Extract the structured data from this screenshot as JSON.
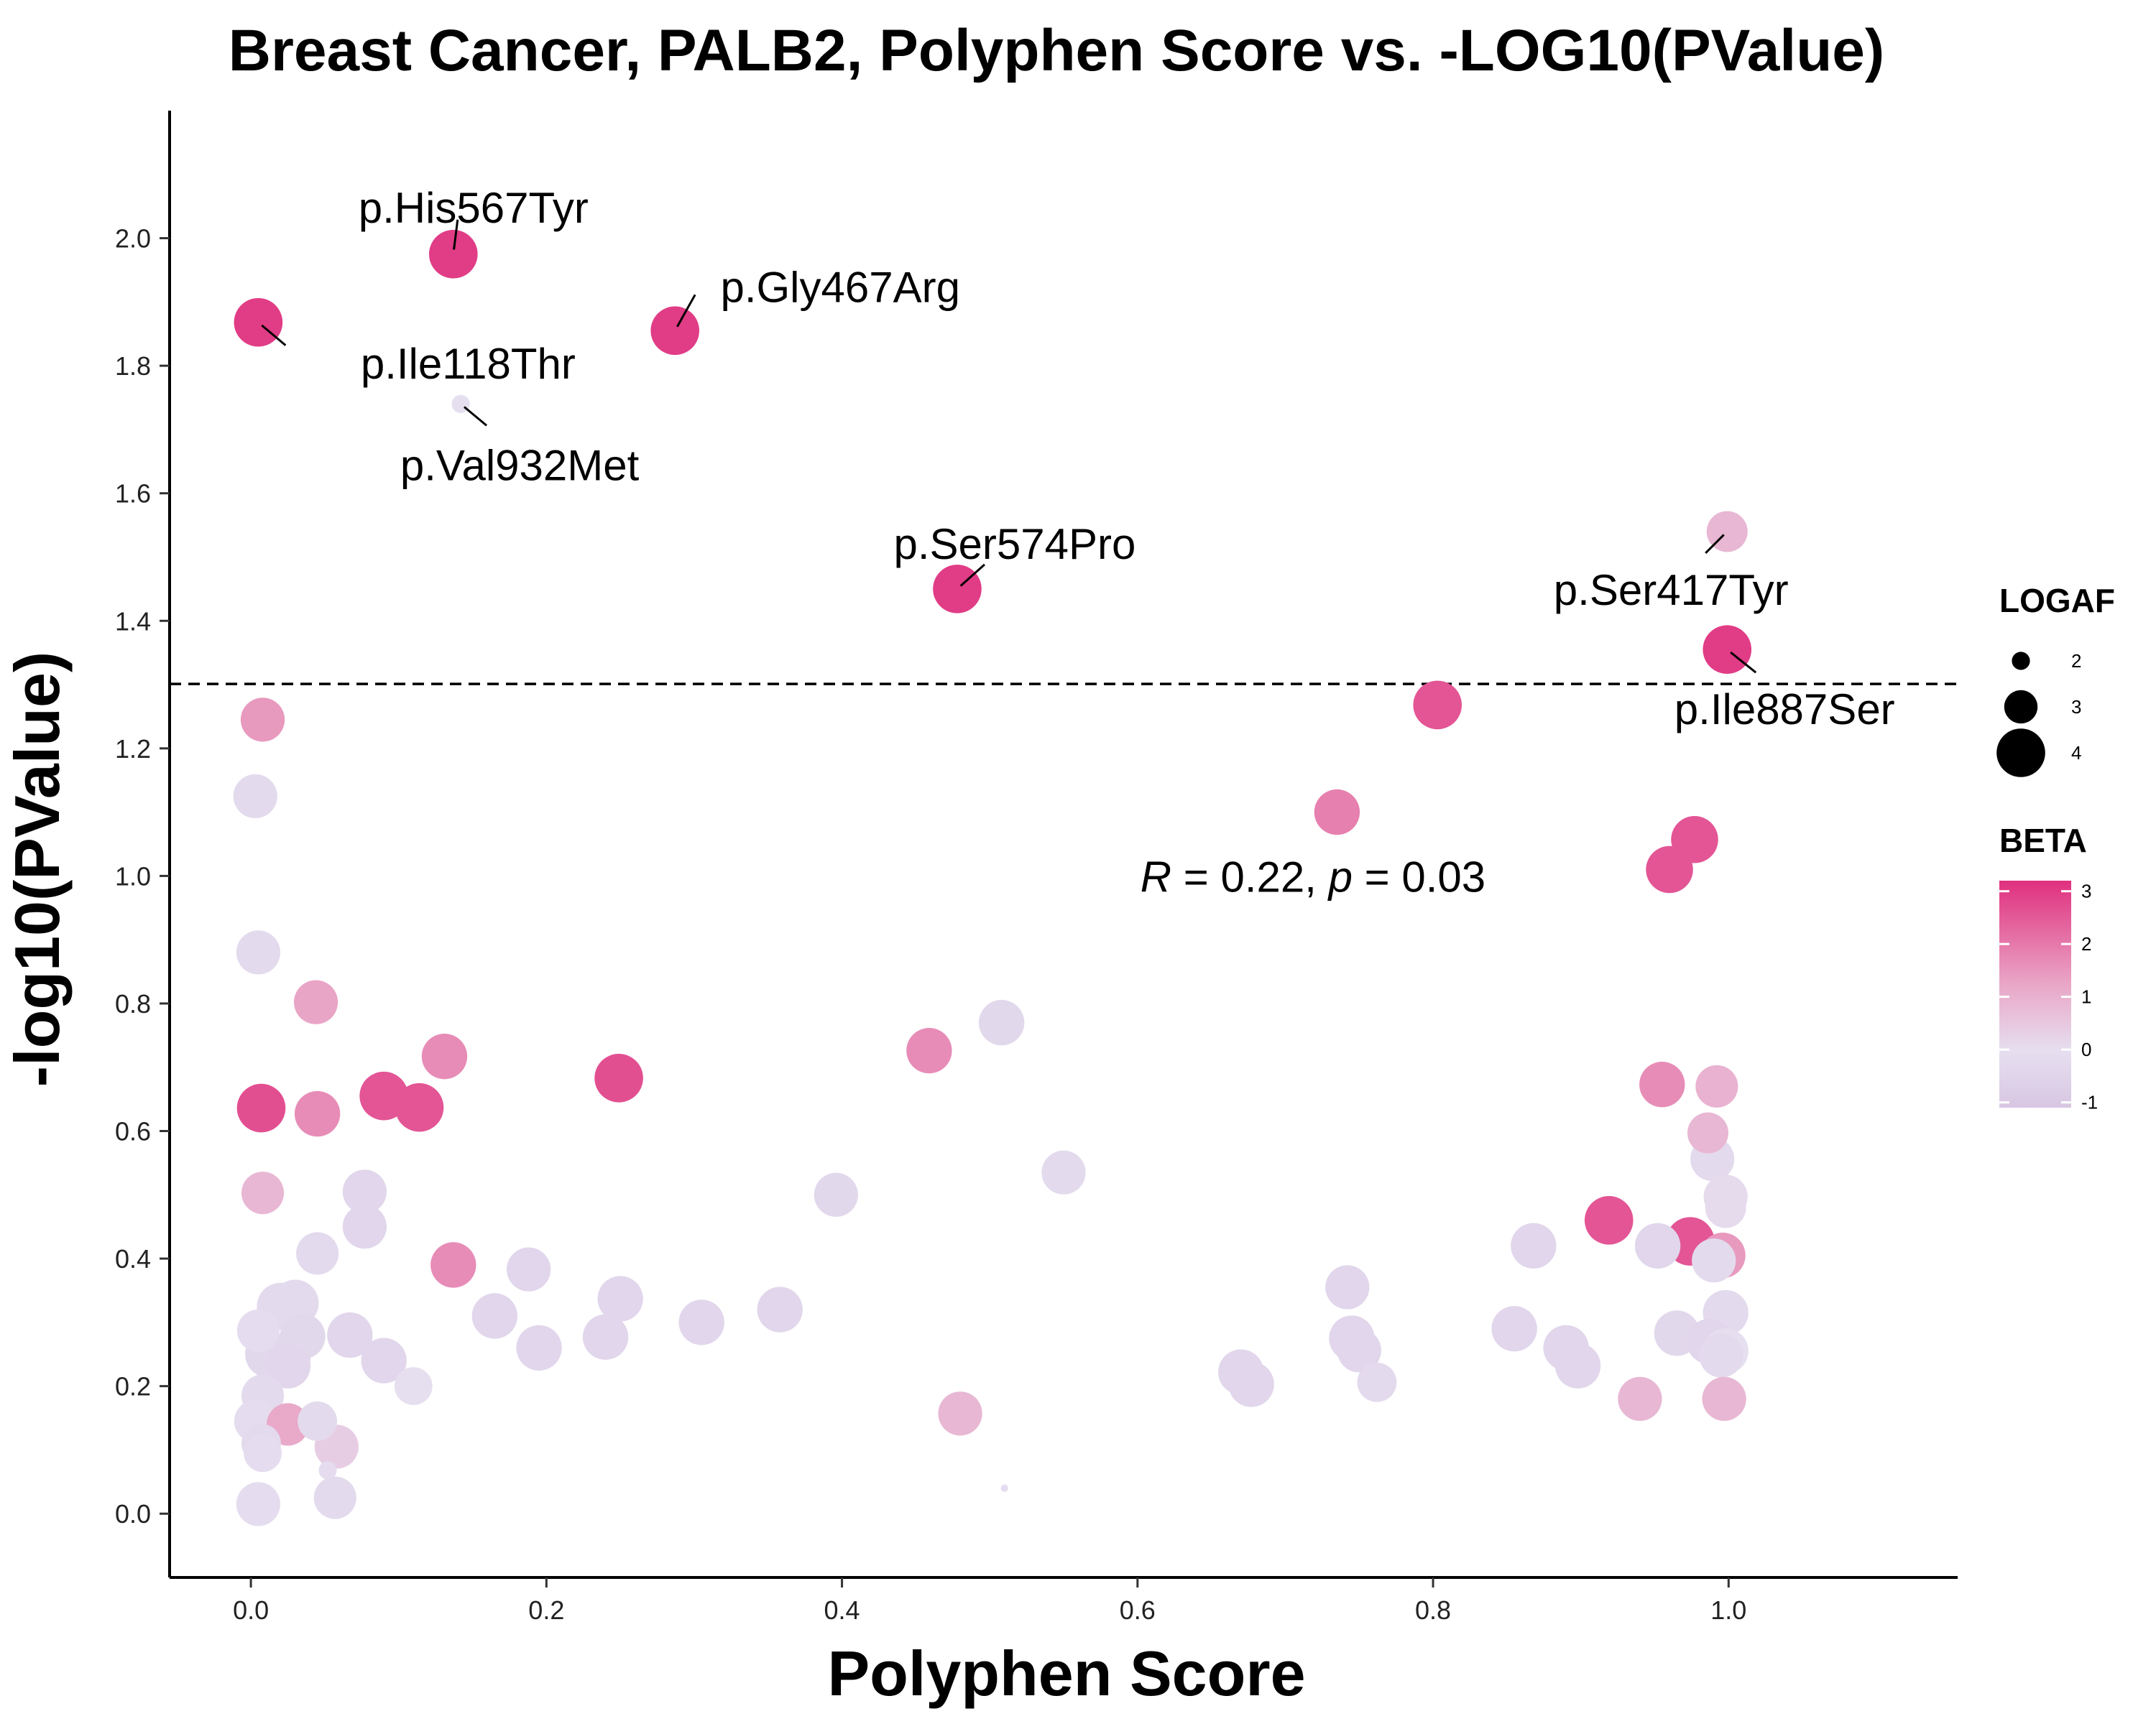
{
  "chart_data": {
    "type": "scatter",
    "title": "Breast Cancer, PALB2, Polyphen Score vs. -LOG10(PValue)",
    "xlabel": "Polyphen Score",
    "ylabel": "-log10(PValue)",
    "xlim": [
      -0.055,
      1.155
    ],
    "ylim": [
      -0.1,
      2.2
    ],
    "xticks": [
      0.0,
      0.2,
      0.4,
      0.6,
      0.8,
      1.0
    ],
    "xtick_labels": [
      "0.0",
      "0.2",
      "0.4",
      "0.6",
      "0.8",
      "1.0"
    ],
    "yticks": [
      0.0,
      0.2,
      0.4,
      0.6,
      0.8,
      1.0,
      1.2,
      1.4,
      1.6,
      1.8,
      2.0
    ],
    "ytick_labels": [
      "0.0",
      "0.2",
      "0.4",
      "0.6",
      "0.8",
      "1.0",
      "1.2",
      "1.4",
      "1.6",
      "1.8",
      "2.0"
    ],
    "significance_line_y": 1.301,
    "correlation_label": {
      "R": "R",
      "eq1": " = 0.22, ",
      "p": "p",
      "eq2": " = 0.03",
      "x": 0.6,
      "y": 1.0
    },
    "legend": {
      "size_title": "LOGAF",
      "size_levels": [
        2,
        3,
        4
      ],
      "size_labels": [
        "2",
        "3",
        "4"
      ],
      "color_title": "BETA",
      "color_ticks": [
        3,
        2,
        1,
        0,
        -1
      ],
      "color_tick_labels": [
        "3",
        "2",
        "1",
        "0",
        "-1"
      ],
      "color_range": [
        -1.1,
        3.2
      ],
      "color_low": "#d8c6e2",
      "color_mid": "#e6dff0",
      "color_high": "#e0307e"
    },
    "labels": [
      {
        "text": "p.His567Tyr",
        "x": 0.137,
        "y": 1.975
      },
      {
        "text": "p.Gly467Arg",
        "x": 0.287,
        "y": 1.855
      },
      {
        "text": "p.Ile118Thr",
        "x": 0.005,
        "y": 1.868
      },
      {
        "text": "p.Val932Met",
        "x": 0.142,
        "y": 1.74
      },
      {
        "text": "p.Ser574Pro",
        "x": 0.478,
        "y": 1.45
      },
      {
        "text": "p.Ser417Tyr",
        "x": 0.999,
        "y": 1.54
      },
      {
        "text": "p.Ile887Ser",
        "x": 0.999,
        "y": 1.355
      }
    ],
    "points": [
      {
        "x": 0.137,
        "y": 1.975,
        "logaf": 4.0,
        "beta": 3.0
      },
      {
        "x": 0.287,
        "y": 1.855,
        "logaf": 4.0,
        "beta": 3.0
      },
      {
        "x": 0.005,
        "y": 1.868,
        "logaf": 4.0,
        "beta": 3.0
      },
      {
        "x": 0.142,
        "y": 1.74,
        "logaf": 2.0,
        "beta": 0.0
      },
      {
        "x": 0.478,
        "y": 1.45,
        "logaf": 4.0,
        "beta": 3.0
      },
      {
        "x": 0.999,
        "y": 1.54,
        "logaf": 3.5,
        "beta": 0.9
      },
      {
        "x": 0.999,
        "y": 1.355,
        "logaf": 4.0,
        "beta": 3.0
      },
      {
        "x": 0.803,
        "y": 1.268,
        "logaf": 4.0,
        "beta": 2.6
      },
      {
        "x": 0.008,
        "y": 1.245,
        "logaf": 3.7,
        "beta": 1.5
      },
      {
        "x": 0.003,
        "y": 1.125,
        "logaf": 3.7,
        "beta": -0.2
      },
      {
        "x": 0.735,
        "y": 1.1,
        "logaf": 3.8,
        "beta": 1.9
      },
      {
        "x": 0.977,
        "y": 1.057,
        "logaf": 3.9,
        "beta": 2.6
      },
      {
        "x": 0.96,
        "y": 1.01,
        "logaf": 3.9,
        "beta": 2.6
      },
      {
        "x": 0.005,
        "y": 0.88,
        "logaf": 3.7,
        "beta": -0.2
      },
      {
        "x": 0.044,
        "y": 0.802,
        "logaf": 3.7,
        "beta": 1.3
      },
      {
        "x": 0.508,
        "y": 0.77,
        "logaf": 3.8,
        "beta": -0.3
      },
      {
        "x": 0.131,
        "y": 0.717,
        "logaf": 3.8,
        "beta": 1.7
      },
      {
        "x": 0.459,
        "y": 0.726,
        "logaf": 3.8,
        "beta": 1.7
      },
      {
        "x": 0.249,
        "y": 0.683,
        "logaf": 4.0,
        "beta": 2.7
      },
      {
        "x": 0.955,
        "y": 0.673,
        "logaf": 3.8,
        "beta": 1.7
      },
      {
        "x": 0.992,
        "y": 0.67,
        "logaf": 3.6,
        "beta": 1.0
      },
      {
        "x": 0.007,
        "y": 0.636,
        "logaf": 4.0,
        "beta": 2.7
      },
      {
        "x": 0.09,
        "y": 0.655,
        "logaf": 4.0,
        "beta": 2.6
      },
      {
        "x": 0.114,
        "y": 0.637,
        "logaf": 4.0,
        "beta": 2.6
      },
      {
        "x": 0.045,
        "y": 0.627,
        "logaf": 3.8,
        "beta": 1.7
      },
      {
        "x": 0.986,
        "y": 0.597,
        "logaf": 3.5,
        "beta": 0.9
      },
      {
        "x": 0.989,
        "y": 0.556,
        "logaf": 3.7,
        "beta": -0.2
      },
      {
        "x": 0.55,
        "y": 0.535,
        "logaf": 3.7,
        "beta": -0.2
      },
      {
        "x": 0.077,
        "y": 0.505,
        "logaf": 3.7,
        "beta": -0.4
      },
      {
        "x": 0.008,
        "y": 0.503,
        "logaf": 3.6,
        "beta": 0.9
      },
      {
        "x": 0.396,
        "y": 0.5,
        "logaf": 3.7,
        "beta": -0.3
      },
      {
        "x": 0.998,
        "y": 0.497,
        "logaf": 3.7,
        "beta": 0.1
      },
      {
        "x": 0.998,
        "y": 0.48,
        "logaf": 3.5,
        "beta": 0.1
      },
      {
        "x": 0.919,
        "y": 0.46,
        "logaf": 4.0,
        "beta": 2.6
      },
      {
        "x": 0.077,
        "y": 0.45,
        "logaf": 3.7,
        "beta": -0.4
      },
      {
        "x": 0.974,
        "y": 0.427,
        "logaf": 4.0,
        "beta": 2.6
      },
      {
        "x": 0.868,
        "y": 0.42,
        "logaf": 3.8,
        "beta": -0.4
      },
      {
        "x": 0.952,
        "y": 0.42,
        "logaf": 3.8,
        "beta": -0.4
      },
      {
        "x": 0.045,
        "y": 0.408,
        "logaf": 3.6,
        "beta": -0.2
      },
      {
        "x": 0.996,
        "y": 0.405,
        "logaf": 3.8,
        "beta": 1.5
      },
      {
        "x": 0.99,
        "y": 0.397,
        "logaf": 3.7,
        "beta": -0.2
      },
      {
        "x": 0.137,
        "y": 0.39,
        "logaf": 3.8,
        "beta": 1.7
      },
      {
        "x": 0.188,
        "y": 0.383,
        "logaf": 3.7,
        "beta": -0.4
      },
      {
        "x": 0.742,
        "y": 0.355,
        "logaf": 3.7,
        "beta": -0.4
      },
      {
        "x": 0.25,
        "y": 0.337,
        "logaf": 3.8,
        "beta": -0.4
      },
      {
        "x": 0.03,
        "y": 0.33,
        "logaf": 3.9,
        "beta": -0.2
      },
      {
        "x": 0.02,
        "y": 0.325,
        "logaf": 3.9,
        "beta": -0.2
      },
      {
        "x": 0.358,
        "y": 0.32,
        "logaf": 3.8,
        "beta": -0.4
      },
      {
        "x": 0.998,
        "y": 0.315,
        "logaf": 3.8,
        "beta": -0.2
      },
      {
        "x": 0.165,
        "y": 0.31,
        "logaf": 3.8,
        "beta": -0.4
      },
      {
        "x": 0.305,
        "y": 0.3,
        "logaf": 3.8,
        "beta": -0.4
      },
      {
        "x": 0.855,
        "y": 0.29,
        "logaf": 3.8,
        "beta": -0.4
      },
      {
        "x": 0.005,
        "y": 0.287,
        "logaf": 3.6,
        "beta": -0.1
      },
      {
        "x": 0.965,
        "y": 0.283,
        "logaf": 3.8,
        "beta": -0.3
      },
      {
        "x": 0.067,
        "y": 0.28,
        "logaf": 3.8,
        "beta": -0.4
      },
      {
        "x": 0.035,
        "y": 0.278,
        "logaf": 3.8,
        "beta": -0.3
      },
      {
        "x": 0.24,
        "y": 0.277,
        "logaf": 3.8,
        "beta": -0.4
      },
      {
        "x": 0.745,
        "y": 0.275,
        "logaf": 3.8,
        "beta": -0.4
      },
      {
        "x": 0.987,
        "y": 0.27,
        "logaf": 3.8,
        "beta": -0.4
      },
      {
        "x": 0.195,
        "y": 0.26,
        "logaf": 3.8,
        "beta": -0.4
      },
      {
        "x": 0.89,
        "y": 0.26,
        "logaf": 3.8,
        "beta": -0.4
      },
      {
        "x": 0.998,
        "y": 0.255,
        "logaf": 3.8,
        "beta": 0.0
      },
      {
        "x": 0.75,
        "y": 0.256,
        "logaf": 3.7,
        "beta": -0.4
      },
      {
        "x": 0.012,
        "y": 0.25,
        "logaf": 3.9,
        "beta": -0.3
      },
      {
        "x": 0.025,
        "y": 0.245,
        "logaf": 3.8,
        "beta": -0.3
      },
      {
        "x": 0.995,
        "y": 0.248,
        "logaf": 3.7,
        "beta": -0.2
      },
      {
        "x": 0.09,
        "y": 0.24,
        "logaf": 3.8,
        "beta": -0.4
      },
      {
        "x": 0.898,
        "y": 0.232,
        "logaf": 3.8,
        "beta": -0.4
      },
      {
        "x": 0.025,
        "y": 0.232,
        "logaf": 3.8,
        "beta": -0.4
      },
      {
        "x": 0.67,
        "y": 0.222,
        "logaf": 3.8,
        "beta": -0.4
      },
      {
        "x": 0.762,
        "y": 0.206,
        "logaf": 3.4,
        "beta": -0.2
      },
      {
        "x": 0.677,
        "y": 0.203,
        "logaf": 3.8,
        "beta": -0.4
      },
      {
        "x": 0.11,
        "y": 0.2,
        "logaf": 3.3,
        "beta": 0.0
      },
      {
        "x": 0.008,
        "y": 0.185,
        "logaf": 3.6,
        "beta": -0.2
      },
      {
        "x": 0.94,
        "y": 0.18,
        "logaf": 3.7,
        "beta": 0.9
      },
      {
        "x": 0.997,
        "y": 0.18,
        "logaf": 3.7,
        "beta": 0.9
      },
      {
        "x": 0.48,
        "y": 0.157,
        "logaf": 3.7,
        "beta": 0.9
      },
      {
        "x": 0.003,
        "y": 0.145,
        "logaf": 3.6,
        "beta": -0.1
      },
      {
        "x": 0.045,
        "y": 0.145,
        "logaf": 3.4,
        "beta": -0.2
      },
      {
        "x": 0.025,
        "y": 0.14,
        "logaf": 3.6,
        "beta": 1.2
      },
      {
        "x": 0.058,
        "y": 0.105,
        "logaf": 3.7,
        "beta": 0.4
      },
      {
        "x": 0.007,
        "y": 0.11,
        "logaf": 3.4,
        "beta": -0.2
      },
      {
        "x": 0.008,
        "y": 0.095,
        "logaf": 3.3,
        "beta": -0.1
      },
      {
        "x": 0.052,
        "y": 0.068,
        "logaf": 2.0,
        "beta": -0.1
      },
      {
        "x": 0.057,
        "y": 0.025,
        "logaf": 3.6,
        "beta": -0.2
      },
      {
        "x": 0.005,
        "y": 0.015,
        "logaf": 3.7,
        "beta": -0.1
      },
      {
        "x": 0.51,
        "y": 0.04,
        "logaf": 1.3,
        "beta": -0.1
      }
    ]
  }
}
